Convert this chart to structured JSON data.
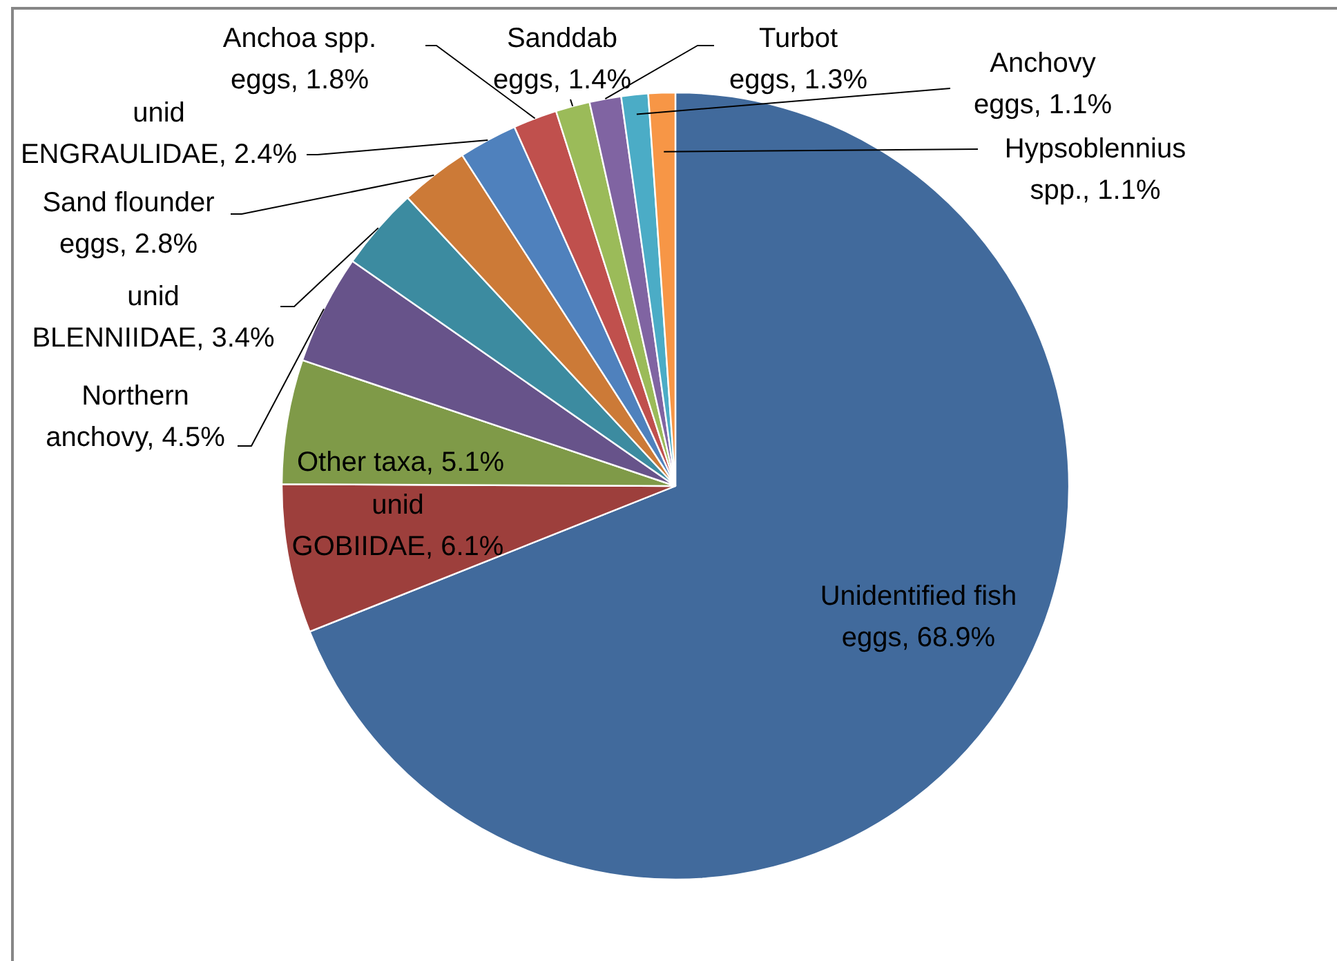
{
  "chart_data": {
    "type": "pie",
    "categories": [
      "Unidentified fish eggs",
      "unid GOBIIDAE",
      "Other taxa",
      "Northern anchovy",
      "unid BLENNIIDAE",
      "Sand flounder eggs",
      "unid ENGRAULIDAE",
      "Anchoa spp. eggs",
      "Sanddab eggs",
      "Turbot eggs",
      "Anchovy eggs",
      "Hypsoblennius spp."
    ],
    "values": [
      68.9,
      6.1,
      5.1,
      4.5,
      3.4,
      2.8,
      2.4,
      1.8,
      1.4,
      1.3,
      1.1,
      1.1
    ],
    "colors": [
      "#416a9c",
      "#9d3f3c",
      "#7f9a48",
      "#67538a",
      "#3c8ba0",
      "#cc7a37",
      "#4f81bd",
      "#c0504d",
      "#9bbb59",
      "#8064a2",
      "#4bacc6",
      "#f79646"
    ],
    "value_labels": [
      "68.9%",
      "6.1%",
      "5.1%",
      "4.5%",
      "3.4%",
      "2.8%",
      "2.4%",
      "1.8%",
      "1.4%",
      "1.3%",
      "1.1%",
      "1.1%"
    ]
  }
}
